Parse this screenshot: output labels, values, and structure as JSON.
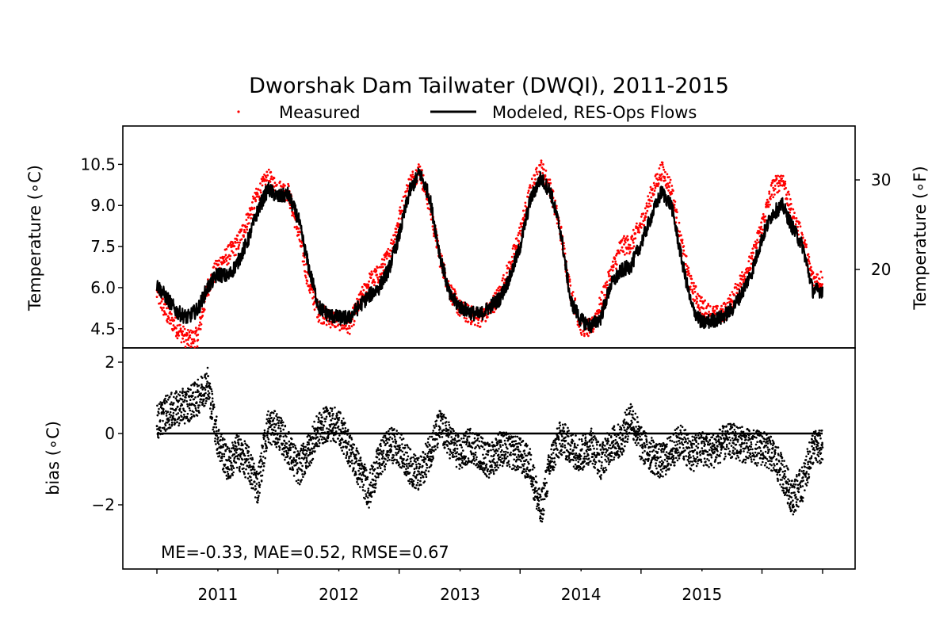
{
  "chart_data": {
    "type": "line",
    "title": "Dworshak Dam Tailwater (DWQI), 2011-2015",
    "x_ticks": [
      "2011",
      "2012",
      "2013",
      "2014",
      "2015"
    ],
    "x_range": [
      "2010-07-01",
      "2015-12-31"
    ],
    "top_panel": {
      "ylabel_left": "Temperature (∘C)",
      "ylabel_right": "Temperature (∘F)",
      "ylim": [
        3.8,
        11.9
      ],
      "yticks_left": [
        4.5,
        6.0,
        7.5,
        9.0,
        10.5
      ],
      "yticks_right": [
        20,
        30
      ],
      "legend": "top-center",
      "series": [
        {
          "name": "Measured",
          "style": "points",
          "color": "#ff0000",
          "x": [
            "2010-07-01",
            "2010-08-01",
            "2010-09-01",
            "2010-10-01",
            "2010-11-01",
            "2010-12-01",
            "2011-01-01",
            "2011-02-01",
            "2011-03-01",
            "2011-04-01",
            "2011-05-01",
            "2011-06-01",
            "2011-07-01",
            "2011-08-01",
            "2011-09-01",
            "2011-10-01",
            "2011-11-01",
            "2011-12-01",
            "2012-01-01",
            "2012-02-01",
            "2012-03-01",
            "2012-04-01",
            "2012-05-01",
            "2012-06-01",
            "2012-07-01",
            "2012-08-01",
            "2012-09-01",
            "2012-10-01",
            "2012-11-01",
            "2012-12-01",
            "2013-01-01",
            "2013-02-01",
            "2013-03-01",
            "2013-04-01",
            "2013-05-01",
            "2013-06-01",
            "2013-07-01",
            "2013-08-01",
            "2013-09-01",
            "2013-10-01",
            "2013-11-01",
            "2013-12-01",
            "2014-01-01",
            "2014-02-01",
            "2014-03-01",
            "2014-04-01",
            "2014-05-01",
            "2014-06-01",
            "2014-07-01",
            "2014-08-01",
            "2014-09-01",
            "2014-10-01",
            "2014-11-01",
            "2014-12-01",
            "2015-01-01",
            "2015-02-01",
            "2015-03-01",
            "2015-04-01",
            "2015-05-01",
            "2015-06-01",
            "2015-07-01",
            "2015-08-01",
            "2015-09-01",
            "2015-10-01",
            "2015-11-01",
            "2015-12-01"
          ],
          "y": [
            5.8,
            5.0,
            4.5,
            4.1,
            4.2,
            6.0,
            6.8,
            7.2,
            7.6,
            8.5,
            9.4,
            10.0,
            9.6,
            9.5,
            8.0,
            6.2,
            5.1,
            4.9,
            4.8,
            4.6,
            5.4,
            6.2,
            6.5,
            7.2,
            8.5,
            9.8,
            10.3,
            9.0,
            7.1,
            5.9,
            5.2,
            5.0,
            4.9,
            5.2,
            5.8,
            6.8,
            8.0,
            9.5,
            10.4,
            9.6,
            8.0,
            5.8,
            4.6,
            4.5,
            5.4,
            6.5,
            7.5,
            7.6,
            8.3,
            9.4,
            10.3,
            9.6,
            7.5,
            6.0,
            5.3,
            5.0,
            5.0,
            5.5,
            6.3,
            7.0,
            8.3,
            9.6,
            10.0,
            8.6,
            7.8,
            6.3
          ],
          "notes": "approximate monthly envelope of dense measured points"
        },
        {
          "name": "Modeled, RES-Ops Flows",
          "style": "line",
          "color": "#000000",
          "x": [
            "2010-07-01",
            "2010-08-01",
            "2010-09-01",
            "2010-10-01",
            "2010-11-01",
            "2010-12-01",
            "2011-01-01",
            "2011-02-01",
            "2011-03-01",
            "2011-04-01",
            "2011-05-01",
            "2011-06-01",
            "2011-07-01",
            "2011-08-01",
            "2011-09-01",
            "2011-10-01",
            "2011-11-01",
            "2011-12-01",
            "2012-01-01",
            "2012-02-01",
            "2012-03-01",
            "2012-04-01",
            "2012-05-01",
            "2012-06-01",
            "2012-07-01",
            "2012-08-01",
            "2012-09-01",
            "2012-10-01",
            "2012-11-01",
            "2012-12-01",
            "2013-01-01",
            "2013-02-01",
            "2013-03-01",
            "2013-04-01",
            "2013-05-01",
            "2013-06-01",
            "2013-07-01",
            "2013-08-01",
            "2013-09-01",
            "2013-10-01",
            "2013-11-01",
            "2013-12-01",
            "2014-01-01",
            "2014-02-01",
            "2014-03-01",
            "2014-04-01",
            "2014-05-01",
            "2014-06-01",
            "2014-07-01",
            "2014-08-01",
            "2014-09-01",
            "2014-10-01",
            "2014-11-01",
            "2014-12-01",
            "2015-01-01",
            "2015-02-01",
            "2015-03-01",
            "2015-04-01",
            "2015-05-01",
            "2015-06-01",
            "2015-07-01",
            "2015-08-01",
            "2015-09-01",
            "2015-10-01",
            "2015-11-01",
            "2015-12-01"
          ],
          "y": [
            6.1,
            5.6,
            5.1,
            4.9,
            5.2,
            6.0,
            6.5,
            6.4,
            6.9,
            7.7,
            8.8,
            9.6,
            9.3,
            9.4,
            8.5,
            6.8,
            5.3,
            5.0,
            4.9,
            4.9,
            5.3,
            5.7,
            6.0,
            6.7,
            7.9,
            9.5,
            10.2,
            9.3,
            7.2,
            5.7,
            5.3,
            5.1,
            5.0,
            5.3,
            5.6,
            6.4,
            7.5,
            9.2,
            10.0,
            9.5,
            8.0,
            5.5,
            4.8,
            4.6,
            4.9,
            6.1,
            6.6,
            6.8,
            7.6,
            8.6,
            9.5,
            9.0,
            7.0,
            5.3,
            4.7,
            4.8,
            4.9,
            5.2,
            5.8,
            6.6,
            7.8,
            8.7,
            9.0,
            8.2,
            7.5,
            5.9
          ]
        }
      ]
    },
    "bottom_panel": {
      "ylabel": "bias (∘C)",
      "ylim": [
        -3.8,
        2.4
      ],
      "yticks": [
        -2,
        0,
        2
      ],
      "zero_line": 0,
      "series": [
        {
          "name": "bias",
          "style": "points",
          "color": "#000000",
          "x": [
            "2010-07-01",
            "2010-08-01",
            "2010-09-01",
            "2010-10-01",
            "2010-11-01",
            "2010-12-01",
            "2011-01-01",
            "2011-02-01",
            "2011-03-01",
            "2011-04-01",
            "2011-05-01",
            "2011-06-01",
            "2011-07-01",
            "2011-08-01",
            "2011-09-01",
            "2011-10-01",
            "2011-11-01",
            "2011-12-01",
            "2012-01-01",
            "2012-02-01",
            "2012-03-01",
            "2012-04-01",
            "2012-05-01",
            "2012-06-01",
            "2012-07-01",
            "2012-08-01",
            "2012-09-01",
            "2012-10-01",
            "2012-11-01",
            "2012-12-01",
            "2013-01-01",
            "2013-02-01",
            "2013-03-01",
            "2013-04-01",
            "2013-05-01",
            "2013-06-01",
            "2013-07-01",
            "2013-08-01",
            "2013-09-01",
            "2013-10-01",
            "2013-11-01",
            "2013-12-01",
            "2014-01-01",
            "2014-02-01",
            "2014-03-01",
            "2014-04-01",
            "2014-05-01",
            "2014-06-01",
            "2014-07-01",
            "2014-08-01",
            "2014-09-01",
            "2014-10-01",
            "2014-11-01",
            "2014-12-01",
            "2015-01-01",
            "2015-02-01",
            "2015-03-01",
            "2015-04-01",
            "2015-05-01",
            "2015-06-01",
            "2015-07-01",
            "2015-08-01",
            "2015-09-01",
            "2015-10-01",
            "2015-11-01",
            "2015-12-01"
          ],
          "y": [
            0.3,
            0.6,
            0.7,
            0.8,
            1.0,
            1.4,
            -0.2,
            -0.9,
            -0.5,
            -0.8,
            -1.5,
            0.2,
            0.1,
            -0.4,
            -1.0,
            -0.5,
            0.1,
            0.3,
            0.2,
            -0.4,
            -1.0,
            -1.6,
            -0.8,
            -0.3,
            -0.4,
            -0.9,
            -1.2,
            -0.5,
            0.2,
            -0.2,
            -0.6,
            -0.3,
            -0.5,
            -0.8,
            -0.4,
            -0.5,
            -0.6,
            -0.9,
            -2.2,
            -0.8,
            -0.1,
            -0.4,
            -0.6,
            -0.3,
            -0.8,
            -0.3,
            -0.2,
            0.5,
            -0.3,
            -0.6,
            -0.8,
            -0.5,
            -0.2,
            -0.6,
            -0.4,
            -0.5,
            -0.3,
            -0.2,
            -0.3,
            -0.4,
            -0.4,
            -0.6,
            -1.1,
            -1.8,
            -1.4,
            -0.4
          ],
          "notes": "approximate monthly central values of dense bias points"
        }
      ],
      "annotation": "ME=-0.33, MAE=0.52, RMSE=0.67"
    }
  }
}
